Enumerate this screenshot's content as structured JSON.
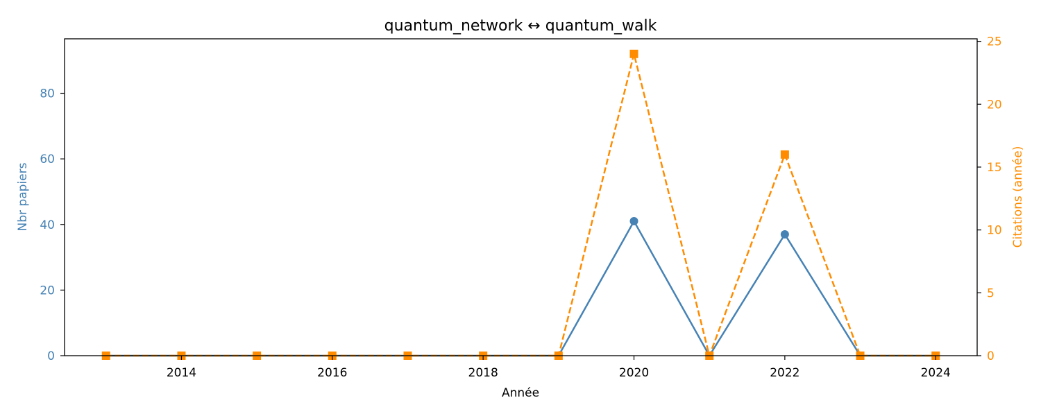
{
  "chart_data": {
    "type": "line",
    "title": "quantum_network  ↔  quantum_walk",
    "xlabel": "Année",
    "ylabel": "Nbr papiers",
    "y2label": "Citations (année)",
    "x": [
      2013,
      2014,
      2015,
      2016,
      2017,
      2018,
      2019,
      2020,
      2021,
      2022,
      2023,
      2024
    ],
    "xlim": [
      2012.45,
      2024.55
    ],
    "xticks": [
      "2014",
      "2016",
      "2018",
      "2020",
      "2022",
      "2024"
    ],
    "ylim": [
      0,
      96.6
    ],
    "yticks": [
      "0",
      "20",
      "40",
      "60",
      "80"
    ],
    "y2lim": [
      0,
      25.2
    ],
    "y2ticks": [
      "0",
      "5",
      "10",
      "15",
      "20",
      "25"
    ],
    "grid": false,
    "series": [
      {
        "axis": "left",
        "color": "#4682b4",
        "style": "solid",
        "marker": "circle",
        "values": [
          0,
          0,
          0,
          0,
          0,
          0,
          0,
          41,
          0,
          37,
          0,
          0
        ]
      },
      {
        "axis": "right",
        "color": "#ff8c00",
        "style": "dashed",
        "marker": "square",
        "values": [
          0,
          0,
          0,
          0,
          0,
          0,
          0,
          24,
          0,
          16,
          0,
          0
        ]
      }
    ]
  }
}
